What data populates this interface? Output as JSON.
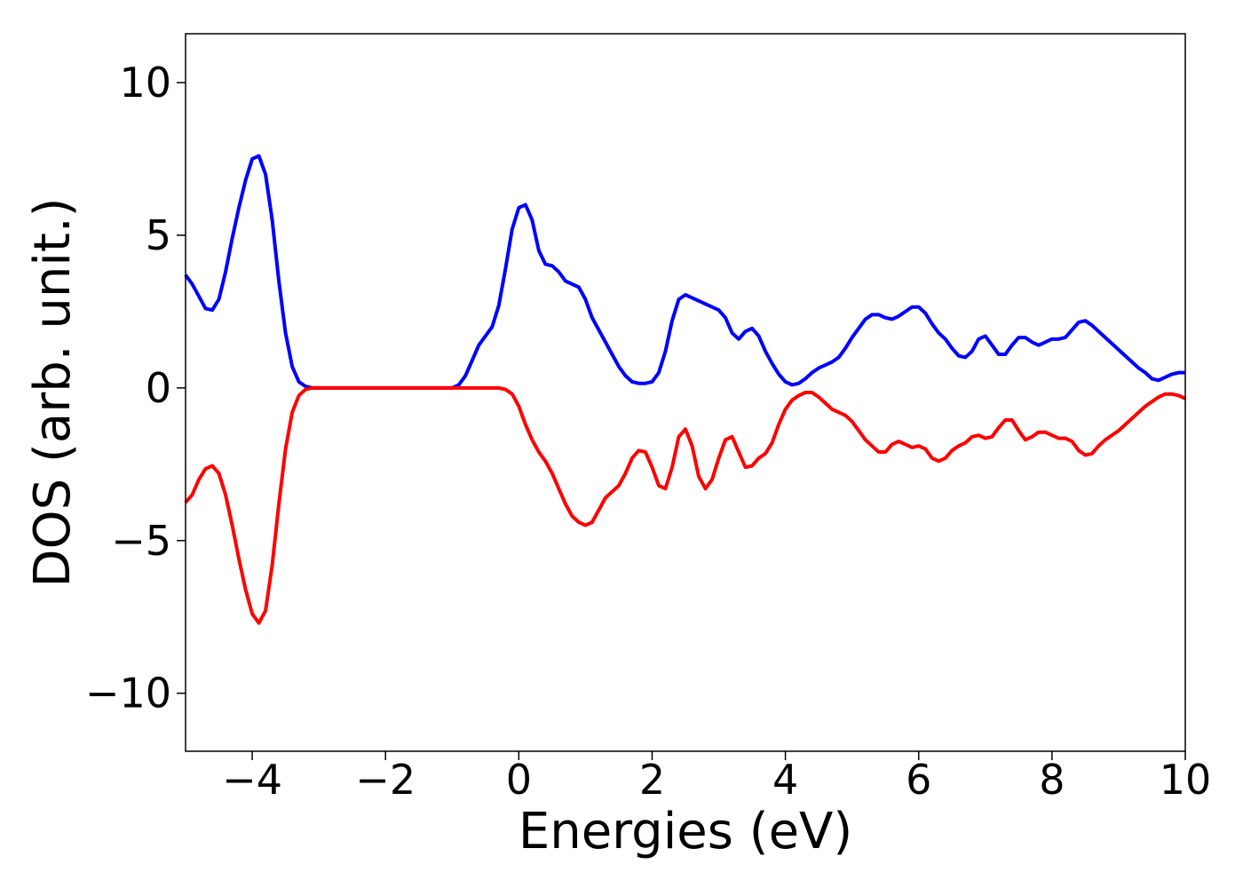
{
  "chart_data": {
    "type": "line",
    "x_label": "Energies (eV)",
    "y_label": "DOS (arb. unit.)",
    "x": [
      -5.0,
      -4.9,
      -4.8,
      -4.7,
      -4.6,
      -4.5,
      -4.4,
      -4.3,
      -4.2,
      -4.1,
      -4.0,
      -3.9,
      -3.8,
      -3.7,
      -3.6,
      -3.5,
      -3.4,
      -3.3,
      -3.2,
      -3.1,
      -3.0,
      -2.5,
      -2.0,
      -1.5,
      -1.0,
      -0.9,
      -0.8,
      -0.7,
      -0.6,
      -0.5,
      -0.4,
      -0.3,
      -0.2,
      -0.1,
      0.0,
      0.1,
      0.2,
      0.3,
      0.4,
      0.5,
      0.6,
      0.7,
      0.8,
      0.9,
      1.0,
      1.1,
      1.2,
      1.3,
      1.4,
      1.5,
      1.6,
      1.7,
      1.8,
      1.9,
      2.0,
      2.1,
      2.2,
      2.3,
      2.4,
      2.5,
      2.6,
      2.7,
      2.8,
      2.9,
      3.0,
      3.1,
      3.2,
      3.3,
      3.4,
      3.5,
      3.6,
      3.7,
      3.8,
      3.9,
      4.0,
      4.1,
      4.2,
      4.3,
      4.4,
      4.5,
      4.6,
      4.7,
      4.8,
      4.9,
      5.0,
      5.1,
      5.2,
      5.3,
      5.4,
      5.5,
      5.6,
      5.7,
      5.8,
      5.9,
      6.0,
      6.1,
      6.2,
      6.3,
      6.4,
      6.5,
      6.6,
      6.7,
      6.8,
      6.9,
      7.0,
      7.1,
      7.2,
      7.3,
      7.4,
      7.5,
      7.6,
      7.7,
      7.8,
      7.9,
      8.0,
      8.1,
      8.2,
      8.3,
      8.4,
      8.5,
      8.6,
      8.7,
      8.8,
      8.9,
      9.0,
      9.1,
      9.2,
      9.3,
      9.4,
      9.5,
      9.6,
      9.7,
      9.8,
      9.9,
      10.0
    ],
    "series": [
      {
        "color": "#0000ff",
        "values": [
          3.7,
          3.4,
          3.0,
          2.6,
          2.55,
          2.9,
          3.8,
          4.9,
          5.9,
          6.8,
          7.5,
          7.6,
          7.0,
          5.5,
          3.5,
          1.8,
          0.7,
          0.2,
          0.05,
          0,
          0,
          0,
          0,
          0,
          0,
          0.1,
          0.4,
          0.9,
          1.4,
          1.7,
          2.0,
          2.7,
          3.9,
          5.2,
          5.9,
          6.0,
          5.5,
          4.5,
          4.05,
          4.0,
          3.8,
          3.5,
          3.4,
          3.3,
          2.9,
          2.3,
          1.9,
          1.5,
          1.1,
          0.7,
          0.4,
          0.2,
          0.15,
          0.15,
          0.2,
          0.5,
          1.2,
          2.2,
          2.9,
          3.05,
          2.95,
          2.85,
          2.75,
          2.65,
          2.55,
          2.3,
          1.8,
          1.6,
          1.85,
          1.95,
          1.7,
          1.2,
          0.8,
          0.45,
          0.2,
          0.1,
          0.15,
          0.3,
          0.5,
          0.65,
          0.75,
          0.85,
          1.0,
          1.3,
          1.65,
          1.95,
          2.25,
          2.4,
          2.4,
          2.3,
          2.25,
          2.35,
          2.5,
          2.65,
          2.65,
          2.45,
          2.1,
          1.8,
          1.6,
          1.3,
          1.05,
          1.0,
          1.2,
          1.6,
          1.7,
          1.4,
          1.1,
          1.1,
          1.4,
          1.65,
          1.65,
          1.5,
          1.4,
          1.5,
          1.6,
          1.6,
          1.65,
          1.9,
          2.15,
          2.2,
          2.05,
          1.85,
          1.65,
          1.45,
          1.25,
          1.05,
          0.85,
          0.65,
          0.5,
          0.3,
          0.25,
          0.35,
          0.45,
          0.5,
          0.5
        ]
      },
      {
        "color": "#ff0000",
        "values": [
          -3.75,
          -3.5,
          -3.0,
          -2.65,
          -2.55,
          -2.8,
          -3.5,
          -4.5,
          -5.6,
          -6.6,
          -7.4,
          -7.7,
          -7.3,
          -5.8,
          -3.8,
          -2.0,
          -0.8,
          -0.25,
          -0.05,
          0,
          0,
          0,
          0,
          0,
          0,
          0,
          0,
          0,
          0,
          0,
          0,
          0,
          -0.05,
          -0.2,
          -0.6,
          -1.2,
          -1.7,
          -2.1,
          -2.4,
          -2.8,
          -3.3,
          -3.8,
          -4.2,
          -4.4,
          -4.5,
          -4.4,
          -4.0,
          -3.6,
          -3.4,
          -3.2,
          -2.8,
          -2.3,
          -2.05,
          -2.1,
          -2.6,
          -3.2,
          -3.3,
          -2.6,
          -1.6,
          -1.35,
          -1.9,
          -2.9,
          -3.3,
          -3.0,
          -2.3,
          -1.7,
          -1.6,
          -2.1,
          -2.6,
          -2.55,
          -2.3,
          -2.15,
          -1.8,
          -1.2,
          -0.7,
          -0.4,
          -0.25,
          -0.15,
          -0.15,
          -0.3,
          -0.5,
          -0.7,
          -0.8,
          -0.9,
          -1.1,
          -1.4,
          -1.7,
          -1.9,
          -2.1,
          -2.1,
          -1.85,
          -1.75,
          -1.85,
          -1.95,
          -1.9,
          -2.0,
          -2.3,
          -2.4,
          -2.3,
          -2.05,
          -1.9,
          -1.8,
          -1.6,
          -1.55,
          -1.65,
          -1.6,
          -1.3,
          -1.05,
          -1.05,
          -1.4,
          -1.7,
          -1.6,
          -1.45,
          -1.45,
          -1.55,
          -1.65,
          -1.65,
          -1.75,
          -2.05,
          -2.2,
          -2.15,
          -1.9,
          -1.7,
          -1.55,
          -1.4,
          -1.2,
          -1.0,
          -0.8,
          -0.6,
          -0.45,
          -0.3,
          -0.2,
          -0.2,
          -0.25,
          -0.35
        ]
      }
    ],
    "xlim": [
      -5,
      10
    ],
    "xticks": [
      {
        "value": -4,
        "label": "−4"
      },
      {
        "value": -2,
        "label": "−2"
      },
      0,
      2,
      4,
      6,
      8,
      10
    ],
    "ylim": [
      -11.9,
      11.6
    ],
    "yticks": [
      {
        "value": -10,
        "label": "−10"
      },
      {
        "value": -5,
        "label": "−5"
      },
      0,
      5,
      10
    ],
    "grid": false
  }
}
